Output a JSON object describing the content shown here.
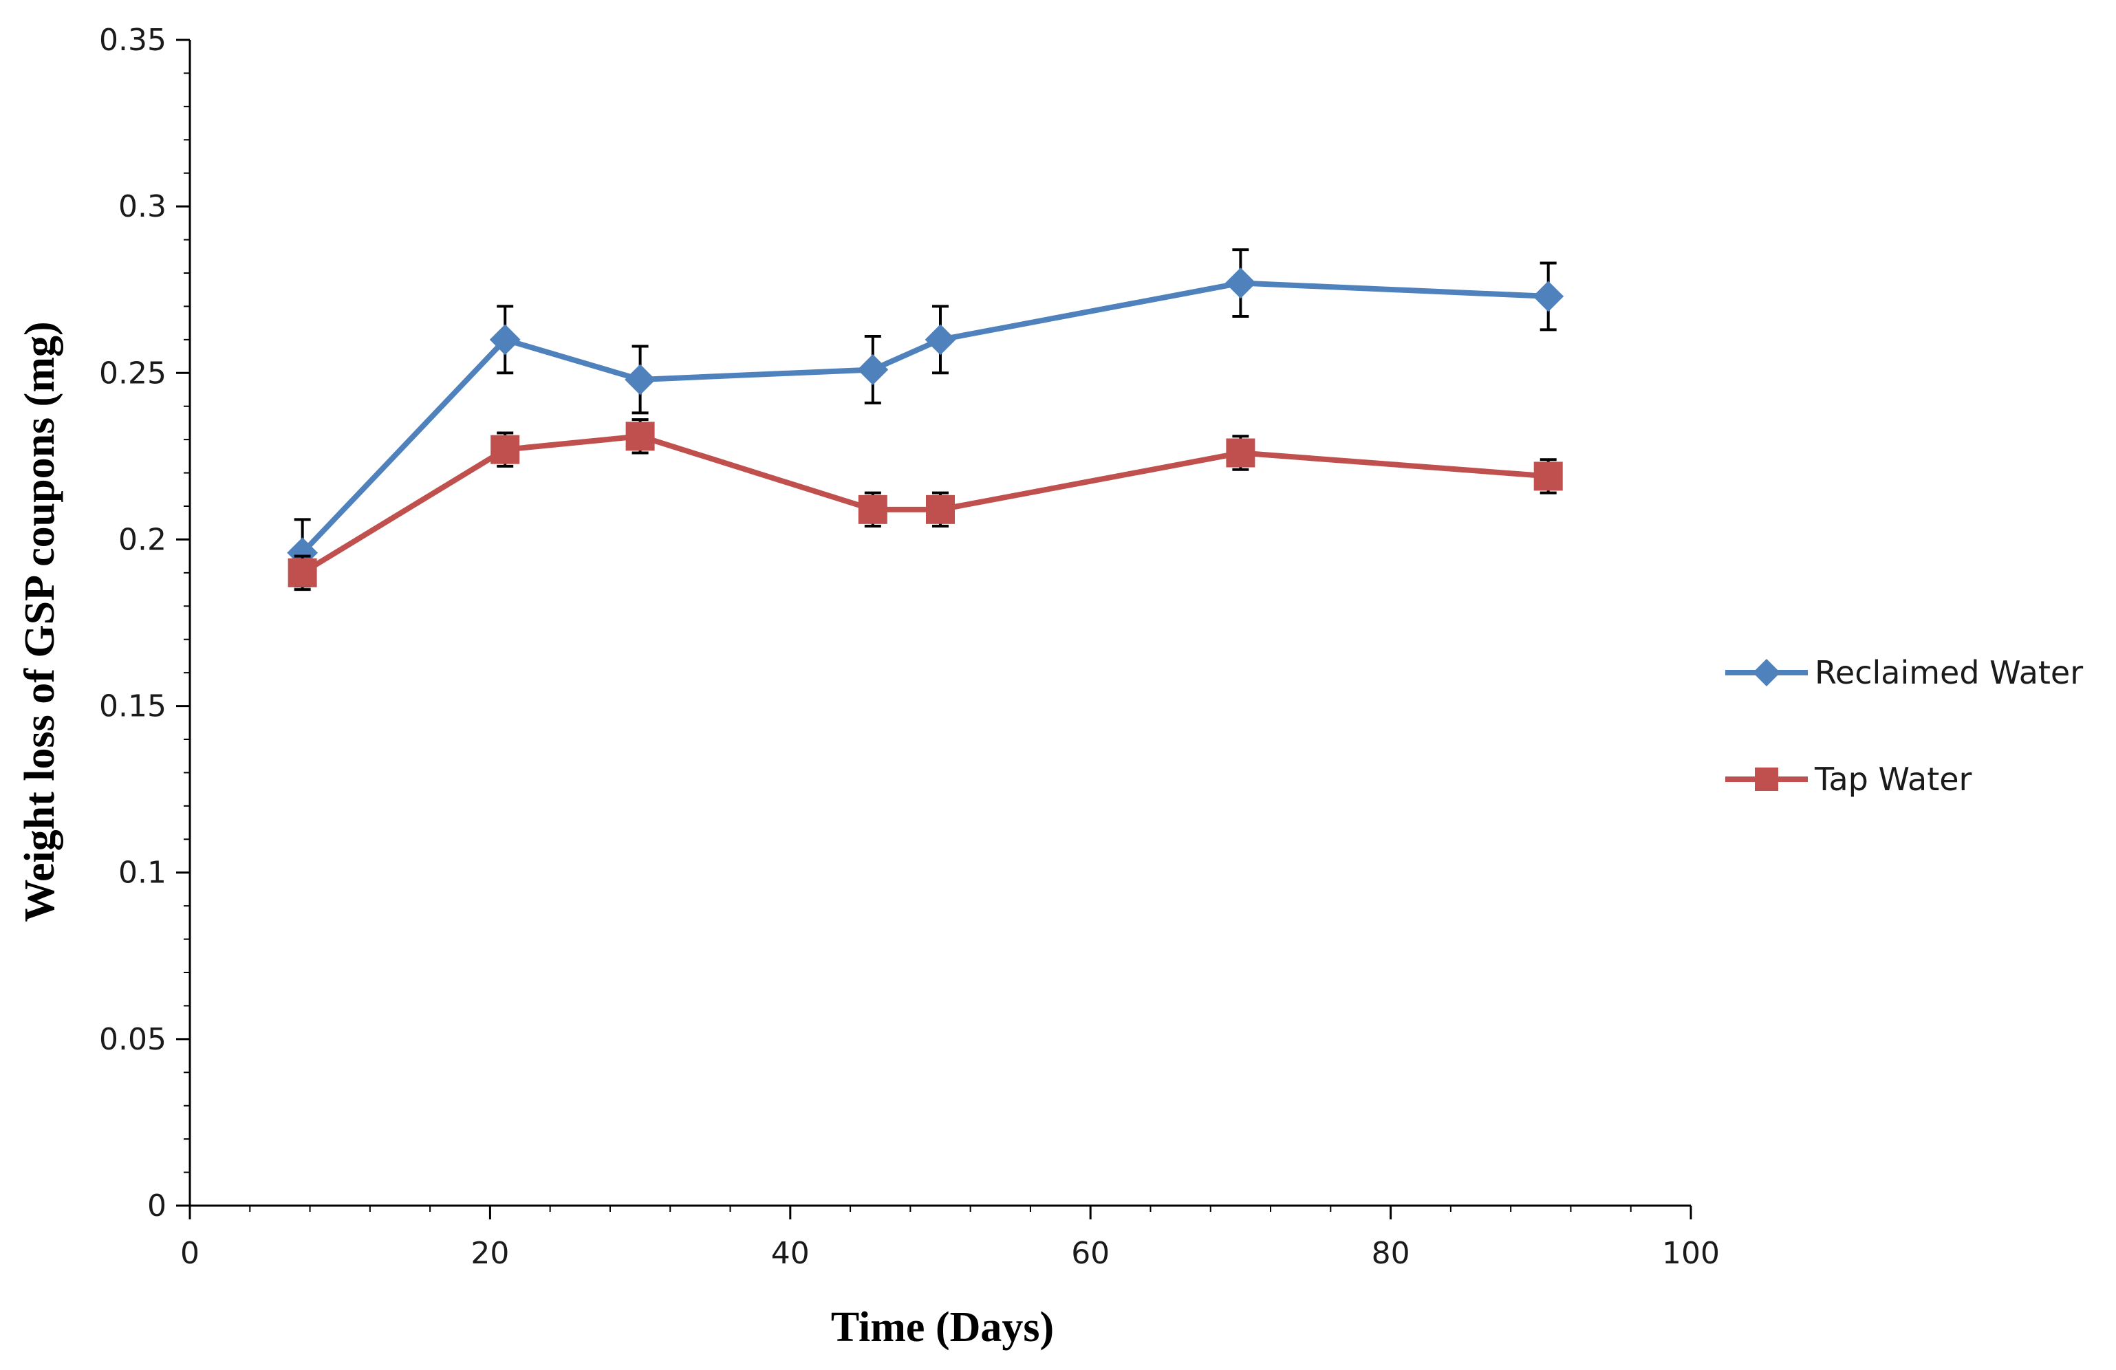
{
  "chart_data": {
    "type": "line",
    "xlabel": "Time (Days)",
    "ylabel": "Weight loss of GSP coupons  (mg)",
    "xlim": [
      0,
      100
    ],
    "ylim": [
      0,
      0.35
    ],
    "xticks": [
      0,
      20,
      40,
      60,
      80,
      100
    ],
    "xtick_labels": [
      "0",
      "20",
      "40",
      "60",
      "80",
      "100"
    ],
    "yticks": [
      0,
      0.05,
      0.1,
      0.15,
      0.2,
      0.25,
      0.3,
      0.35
    ],
    "ytick_labels": [
      "0",
      "0.05",
      "0.1",
      "0.15",
      "0.2",
      "0.25",
      "0.3",
      "0.35"
    ],
    "x_minor_step": 4,
    "y_minor_step": 0.01,
    "grid": false,
    "legend_position": "right",
    "series": [
      {
        "name": "Reclaimed Water",
        "color": "#4F81BD",
        "marker": "diamond",
        "x": [
          7.5,
          21,
          30,
          45.5,
          50,
          70,
          90.5
        ],
        "values": [
          0.196,
          0.26,
          0.248,
          0.251,
          0.26,
          0.277,
          0.273
        ],
        "error": [
          0.01,
          0.01,
          0.01,
          0.01,
          0.01,
          0.01,
          0.01
        ]
      },
      {
        "name": "Tap Water",
        "color": "#C0504D",
        "marker": "square",
        "x": [
          7.5,
          21,
          30,
          45.5,
          50,
          70,
          90.5
        ],
        "values": [
          0.19,
          0.227,
          0.231,
          0.209,
          0.209,
          0.226,
          0.219
        ],
        "error": [
          0.005,
          0.005,
          0.005,
          0.005,
          0.005,
          0.005,
          0.005
        ]
      }
    ]
  }
}
